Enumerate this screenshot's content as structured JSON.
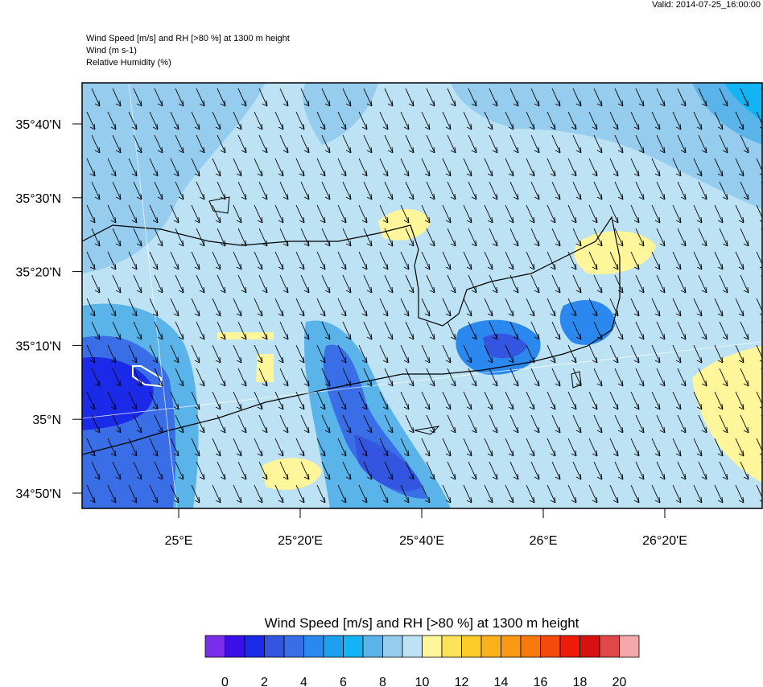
{
  "header": {
    "valid": "Valid: 2014-07-25_16:00:00",
    "lines": [
      "Wind Speed [m/s] and RH [>80 %] at 1300 m height",
      "Wind   (m s-1)",
      "Relative Humidity   (%)"
    ]
  },
  "map": {
    "lat_labels": [
      "35°40'N",
      "35°30'N",
      "35°20'N",
      "35°10'N",
      "35°N",
      "34°50'N"
    ],
    "lon_labels": [
      "25°E",
      "25°20'E",
      "25°40'E",
      "26°E",
      "26°20'E"
    ]
  },
  "colorbar": {
    "title": "Wind Speed [m/s] and RH [>80 %] at 1300 m height",
    "colors": [
      "#7b2ee8",
      "#3b10e8",
      "#1a2ae8",
      "#3355e0",
      "#3a6ee6",
      "#2a88ee",
      "#1ea0f0",
      "#14b4f4",
      "#5ab4ea",
      "#96cdef",
      "#bde2f4",
      "#fff59a",
      "#fde25a",
      "#fccb28",
      "#fbb21a",
      "#f99a12",
      "#f77a0c",
      "#f44a0a",
      "#ee1a0a",
      "#d81010",
      "#e0464a",
      "#f4a8a8"
    ],
    "ticks": [
      0,
      2,
      4,
      6,
      8,
      10,
      12,
      14,
      16,
      18,
      20
    ]
  }
}
